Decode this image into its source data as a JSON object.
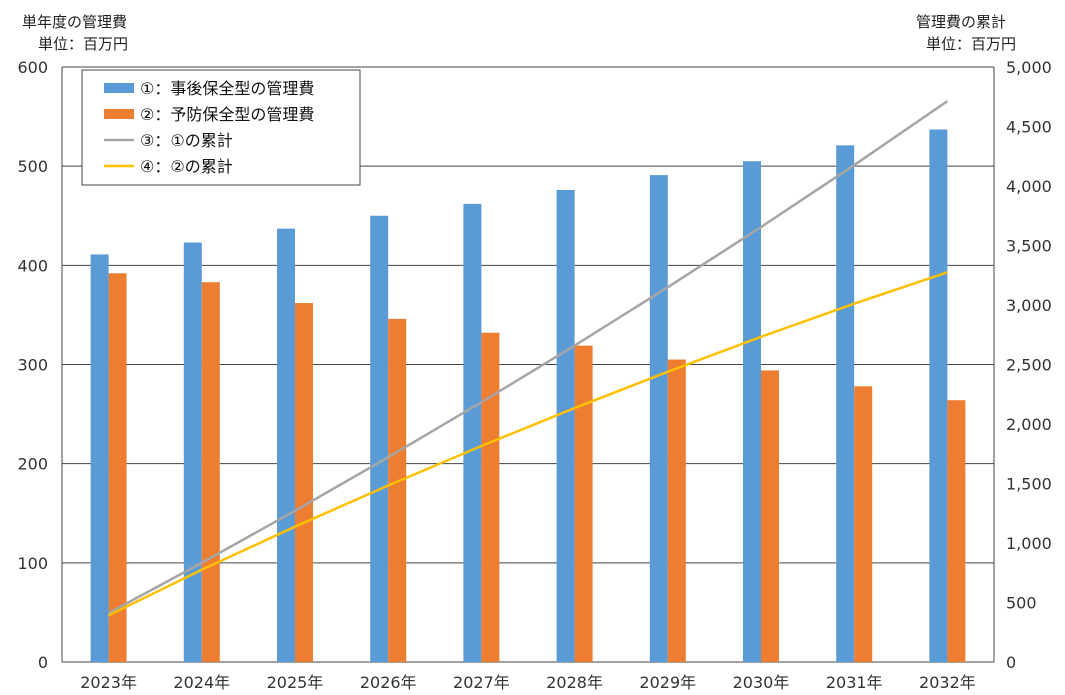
{
  "chart_data": {
    "type": "bar",
    "left_axis": {
      "title": "単年度の管理費",
      "unit": "単位：百万円",
      "ylim": [
        0,
        600
      ],
      "ticks": [
        "0",
        "100",
        "200",
        "300",
        "400",
        "500",
        "600"
      ]
    },
    "right_axis": {
      "title": "管理費の累計",
      "unit": "単位：百万円",
      "ylim": [
        0,
        5000
      ],
      "ticks": [
        "0",
        "500",
        "1,000",
        "1,500",
        "2,000",
        "2,500",
        "3,000",
        "3,500",
        "4,000",
        "4,500",
        "5,000"
      ]
    },
    "categories": [
      "2023年",
      "2024年",
      "2025年",
      "2026年",
      "2027年",
      "2028年",
      "2029年",
      "2030年",
      "2031年",
      "2032年"
    ],
    "series": [
      {
        "name": "①：事後保全型の管理費",
        "kind": "bar",
        "axis": "left",
        "color": "#5B9BD5",
        "values": [
          411,
          423,
          437,
          450,
          462,
          476,
          491,
          505,
          521,
          537
        ]
      },
      {
        "name": "②：予防保全型の管理費",
        "kind": "bar",
        "axis": "left",
        "color": "#ED7D31",
        "values": [
          392,
          383,
          362,
          346,
          332,
          319,
          305,
          294,
          278,
          264
        ]
      },
      {
        "name": "③：①の累計",
        "kind": "line",
        "axis": "right",
        "color": "#A5A5A5",
        "values": [
          411,
          834,
          1271,
          1721,
          2183,
          2659,
          3150,
          3655,
          4176,
          4713
        ]
      },
      {
        "name": "④：②の累計",
        "kind": "line",
        "axis": "right",
        "color": "#FFC000",
        "values": [
          392,
          775,
          1137,
          1483,
          1815,
          2134,
          2439,
          2733,
          3011,
          3275
        ]
      }
    ],
    "grid": true,
    "legend_position": "top-left"
  }
}
